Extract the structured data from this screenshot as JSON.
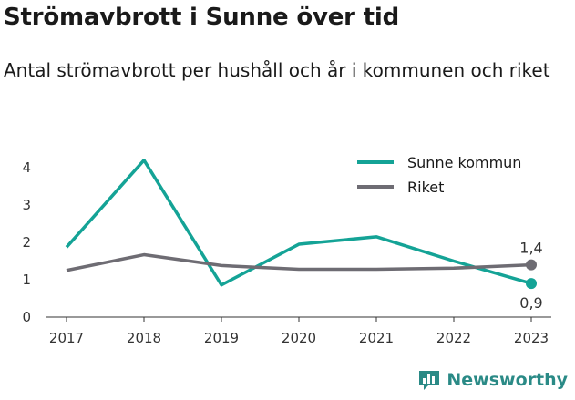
{
  "header": {
    "title": "Strömavbrott i Sunne över tid",
    "subtitle": "Antal strömavbrott per hushåll och år i kommunen och riket"
  },
  "brand": {
    "name": "Newsworthy",
    "icon": "bar-chart-logo-icon",
    "color": "#2a8a86"
  },
  "chart_data": {
    "type": "line",
    "x": [
      2017,
      2018,
      2019,
      2020,
      2021,
      2022,
      2023
    ],
    "ylim": [
      0,
      4
    ],
    "yticks": [
      0,
      1,
      2,
      3,
      4
    ],
    "grid": false,
    "legend": "top-right",
    "series": [
      {
        "name": "Sunne kommun",
        "color": "#14a396",
        "values": [
          1.87,
          4.2,
          0.86,
          1.95,
          2.15,
          1.5,
          0.9
        ],
        "end_label": "0,9"
      },
      {
        "name": "Riket",
        "color": "#6e6c73",
        "values": [
          1.25,
          1.67,
          1.38,
          1.28,
          1.28,
          1.31,
          1.4
        ],
        "end_label": "1,4"
      }
    ]
  }
}
